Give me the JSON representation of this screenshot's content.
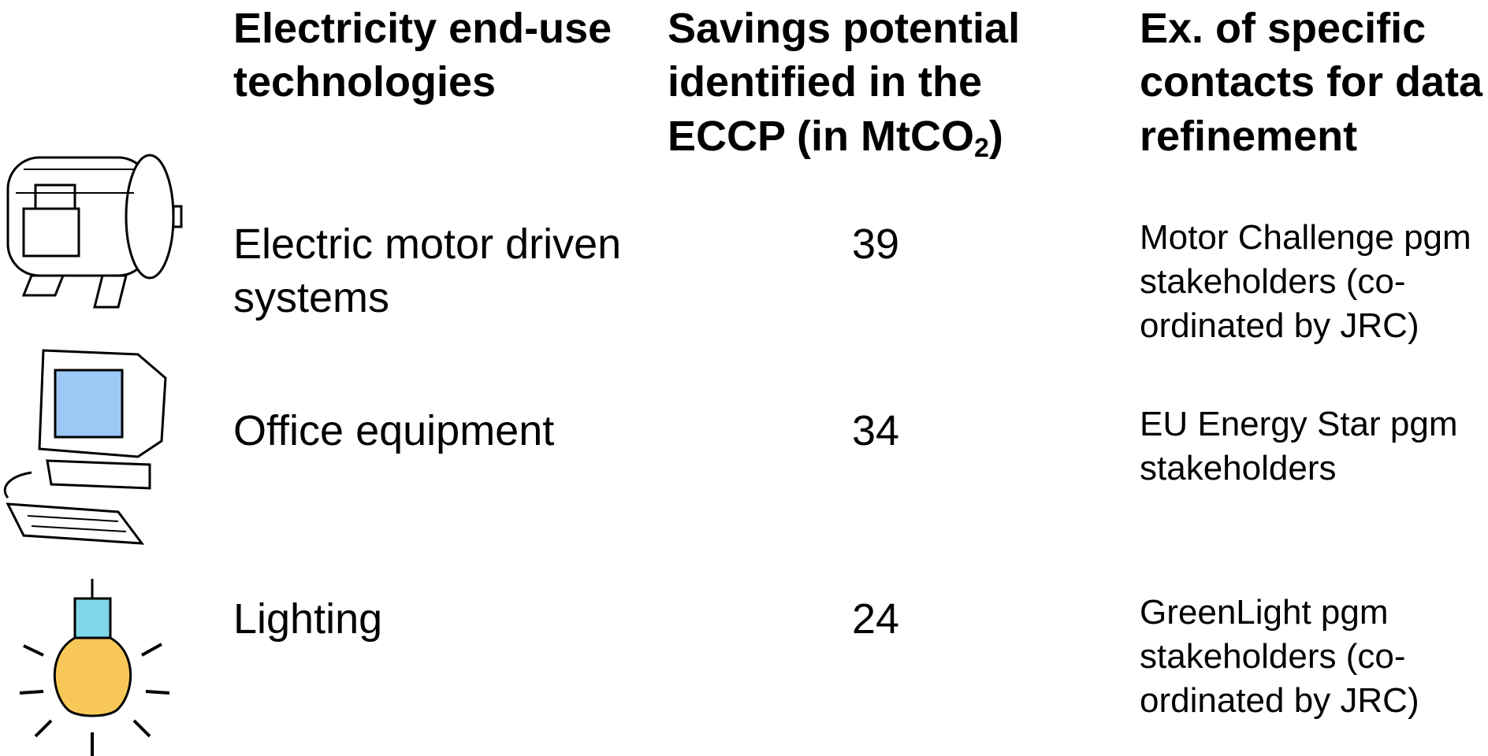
{
  "table": {
    "header": {
      "col1": [
        "Electricity end-use",
        "technologies"
      ],
      "col2": {
        "lines": [
          "Savings potential",
          "identified in the"
        ],
        "last": {
          "text": "ECCP (in MtCO",
          "sub": "2",
          "after": ")"
        }
      },
      "col3": [
        "Ex. of specific",
        "contacts for data",
        "refinement"
      ]
    },
    "rows": [
      {
        "technology": [
          "Electric motor driven",
          "systems"
        ],
        "savings": 39,
        "contacts": [
          "Motor Challenge pgm",
          "stakeholders (co-",
          "ordinated by JRC)"
        ]
      },
      {
        "technology": [
          "Office equipment"
        ],
        "savings": 34,
        "contacts": [
          "EU Energy Star pgm",
          "stakeholders"
        ]
      },
      {
        "technology": [
          "Lighting"
        ],
        "savings": 24,
        "contacts": [
          "GreenLight pgm",
          "stakeholders (co-",
          "ordinated by JRC)"
        ]
      }
    ]
  }
}
